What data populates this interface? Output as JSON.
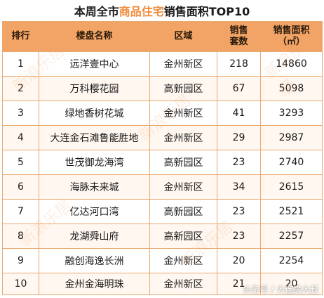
{
  "title": {
    "prefix": "本周全市",
    "highlight": "商品住宅",
    "suffix": "销售面积TOP10"
  },
  "table": {
    "headers": {
      "rank": "排行",
      "project": "楼盘名称",
      "district": "区域",
      "units_line1": "销售",
      "units_line2": "套数",
      "area_line1": "销售面积",
      "area_line2": "（㎡）"
    },
    "rows": [
      {
        "rank": "1",
        "project": "远洋壹中心",
        "district": "金州新区",
        "units": "218",
        "area": "14860"
      },
      {
        "rank": "2",
        "project": "万科樱花园",
        "district": "高新园区",
        "units": "67",
        "area": "5098"
      },
      {
        "rank": "3",
        "project": "绿地香树花城",
        "district": "金州新区",
        "units": "41",
        "area": "3293"
      },
      {
        "rank": "4",
        "project": "大连金石滩鲁能胜地",
        "district": "金州新区",
        "units": "29",
        "area": "2987"
      },
      {
        "rank": "5",
        "project": "世茂御龙海湾",
        "district": "高新园区",
        "units": "23",
        "area": "2740"
      },
      {
        "rank": "6",
        "project": "海脉未来城",
        "district": "金州新区",
        "units": "34",
        "area": "2615"
      },
      {
        "rank": "7",
        "project": "亿达河口湾",
        "district": "高新园区",
        "units": "23",
        "area": "2521"
      },
      {
        "rank": "8",
        "project": "龙湖舜山府",
        "district": "高新园区",
        "units": "23",
        "area": "2257"
      },
      {
        "rank": "9",
        "project": "融创海逸长洲",
        "district": "金州新区",
        "units": "20",
        "area": "2254"
      },
      {
        "rank": "10",
        "project": "金州金海明珠",
        "district": "金州新区",
        "units": "21",
        "area": "20"
      }
    ]
  },
  "watermark": {
    "text": "新浪乐居"
  },
  "source_label": "头条号 / 大连房大叔"
}
